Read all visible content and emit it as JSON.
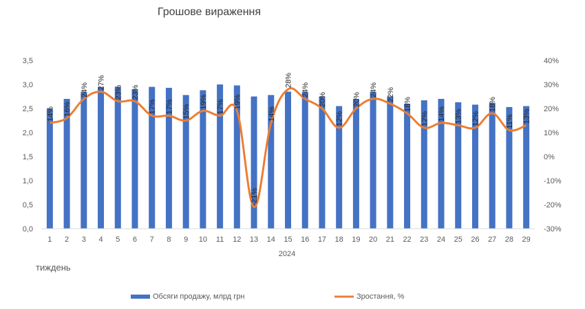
{
  "chart_data": {
    "type": "bar",
    "title": "Грошове вираження",
    "xlabel": "тиждень",
    "x_group_label": "2024",
    "categories": [
      "1",
      "2",
      "3",
      "4",
      "5",
      "6",
      "7",
      "8",
      "9",
      "10",
      "11",
      "12",
      "13",
      "14",
      "15",
      "16",
      "17",
      "18",
      "19",
      "20",
      "21",
      "22",
      "23",
      "24",
      "25",
      "26",
      "27",
      "28",
      "29"
    ],
    "series": [
      {
        "name": "Обсяги продажу, млрд грн",
        "type": "bar",
        "axis": "left",
        "color": "#4472C4",
        "values": [
          2.5,
          2.7,
          2.85,
          2.95,
          2.95,
          2.9,
          2.95,
          2.93,
          2.78,
          2.88,
          3.0,
          2.98,
          2.75,
          2.78,
          2.85,
          2.85,
          2.75,
          2.55,
          2.7,
          2.85,
          2.75,
          2.6,
          2.67,
          2.7,
          2.63,
          2.58,
          2.62,
          2.53,
          2.55
        ]
      },
      {
        "name": "Зростання, %",
        "type": "line",
        "axis": "right",
        "color": "#ED7D31",
        "values": [
          14,
          16,
          24,
          27,
          23,
          23,
          17,
          17,
          15,
          19,
          17,
          19,
          -21,
          14,
          28,
          24,
          20,
          12,
          20,
          24,
          22,
          18,
          12,
          14,
          13,
          12,
          18,
          11,
          13
        ],
        "labels": [
          "14%",
          "16%",
          "24%",
          "27%",
          "23%",
          "23%",
          "17%",
          "17%",
          "15%",
          "19%",
          "17%",
          "19%",
          "-21%",
          "14%",
          "28%",
          "24%",
          "20%",
          "12%",
          "20%",
          "24%",
          "22%",
          "18%",
          "12%",
          "14%",
          "13%",
          "12%",
          "18%",
          "11%",
          "13%"
        ]
      }
    ],
    "y_left": {
      "min": 0,
      "max": 3.5,
      "step": 0.5,
      "ticks": [
        "0,0",
        "0,5",
        "1,0",
        "1,5",
        "2,0",
        "2,5",
        "3,0",
        "3,5"
      ]
    },
    "y_right": {
      "min": -30,
      "max": 40,
      "step": 10,
      "ticks": [
        "-30%",
        "-20%",
        "-10%",
        "0%",
        "10%",
        "20%",
        "30%",
        "40%"
      ]
    },
    "grid": false,
    "legend": "bottom"
  }
}
